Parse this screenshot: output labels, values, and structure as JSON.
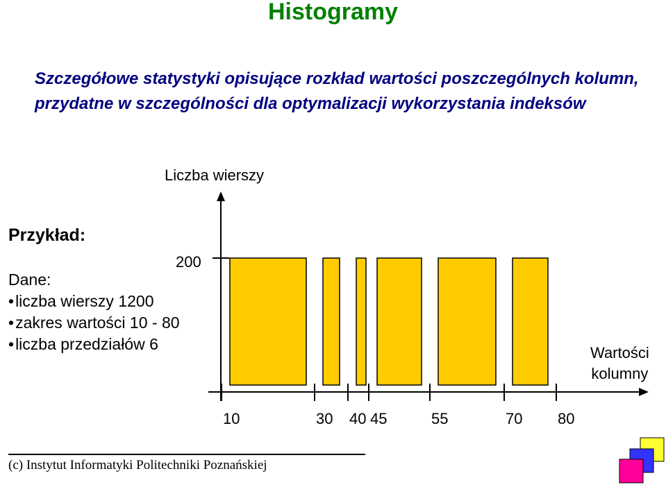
{
  "slide": {
    "title": "Histogramy",
    "subtitle": "Szczegółowe statystyki opisujące rozkład wartości poszczególnych kolumn, przydatne w szczególności dla optymalizacji wykorzystania indeksów",
    "example_heading": "Przykład:",
    "given": {
      "label": "Dane:",
      "items": [
        "liczba wierszy 1200",
        "zakres wartości 10 - 80",
        "liczba przedziałów 6"
      ]
    },
    "footer": "(c) Instytut Informatyki Politechniki Poznańskiej"
  },
  "chart_data": {
    "type": "bar",
    "ylabel": "Liczba wierszy",
    "xlabel_lines": [
      "Wartości",
      "kolumny"
    ],
    "y_tick": "200",
    "x_ticks": [
      "10",
      "30",
      "40",
      "45",
      "55",
      "70",
      "80"
    ],
    "bins": [
      {
        "from": 10,
        "to": 30,
        "rows": 200
      },
      {
        "from": 30,
        "to": 40,
        "rows": 200
      },
      {
        "from": 40,
        "to": 45,
        "rows": 200
      },
      {
        "from": 45,
        "to": 55,
        "rows": 200
      },
      {
        "from": 55,
        "to": 70,
        "rows": 200
      },
      {
        "from": 70,
        "to": 80,
        "rows": 200
      }
    ],
    "bar_color": "#FFCC00"
  },
  "colors": {
    "title": "#008000",
    "subtitle": "#000080",
    "logo_squares": [
      "#FFFF33",
      "#3333FF",
      "#FF0099"
    ]
  }
}
